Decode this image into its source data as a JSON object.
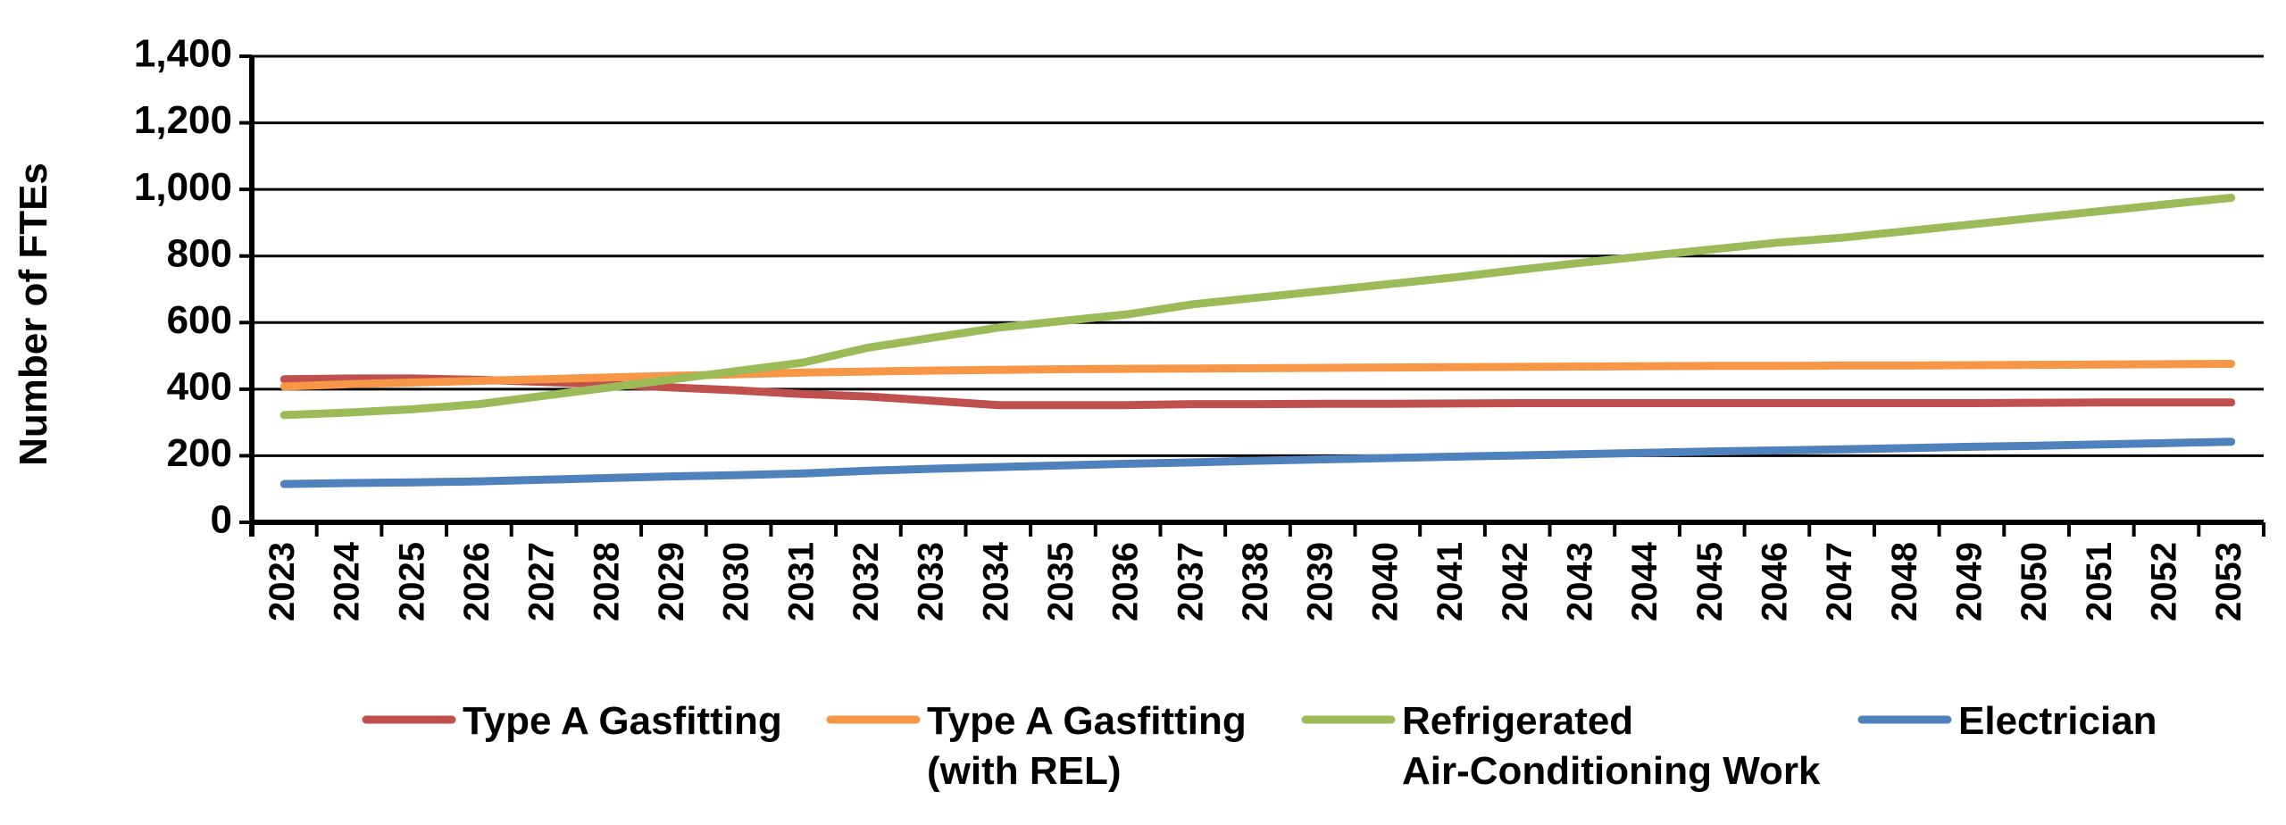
{
  "chart_data": {
    "type": "line",
    "title": "",
    "xlabel": "",
    "ylabel": "Number of FTEs",
    "ylim": [
      0,
      1400
    ],
    "yticks": [
      "0",
      "200",
      "400",
      "600",
      "800",
      "1,000",
      "1,200",
      "1,400"
    ],
    "grid": true,
    "legend_position": "bottom",
    "categories": [
      "2023",
      "2024",
      "2025",
      "2026",
      "2027",
      "2028",
      "2029",
      "2030",
      "2031",
      "2032",
      "2033",
      "2034",
      "2035",
      "2036",
      "2037",
      "2038",
      "2039",
      "2040",
      "2041",
      "2042",
      "2043",
      "2044",
      "2045",
      "2046",
      "2047",
      "2048",
      "2049",
      "2050",
      "2051",
      "2052",
      "2053"
    ],
    "series": [
      {
        "name": "Type A Gasfitting",
        "label_lines": [
          "Type A Gasfitting"
        ],
        "color": "#c0504d",
        "values": [
          430,
          432,
          432,
          428,
          422,
          414,
          405,
          396,
          385,
          378,
          365,
          352,
          352,
          352,
          355,
          355,
          356,
          356,
          357,
          358,
          358,
          358,
          358,
          358,
          358,
          358,
          358,
          359,
          360,
          360,
          360
        ]
      },
      {
        "name": "Type A Gasfitting (with REL)",
        "label_lines": [
          "Type A Gasfitting",
          "(with REL)"
        ],
        "color": "#f79646",
        "values": [
          408,
          415,
          420,
          425,
          430,
          435,
          440,
          445,
          450,
          453,
          456,
          458,
          460,
          461,
          462,
          463,
          464,
          465,
          466,
          467,
          468,
          469,
          470,
          470,
          471,
          471,
          472,
          473,
          474,
          475,
          476
        ]
      },
      {
        "name": "Refrigerated Air-Conditioning Work",
        "label_lines": [
          "Refrigerated",
          "Air-Conditioning Work"
        ],
        "color": "#9bbb59",
        "values": [
          322,
          330,
          340,
          355,
          380,
          405,
          430,
          455,
          480,
          525,
          555,
          585,
          605,
          625,
          655,
          675,
          695,
          715,
          735,
          758,
          780,
          800,
          820,
          840,
          855,
          875,
          895,
          915,
          935,
          955,
          975
        ]
      },
      {
        "name": "Electrician",
        "label_lines": [
          "Electrician"
        ],
        "color": "#4f81bd",
        "values": [
          115,
          118,
          120,
          123,
          128,
          133,
          138,
          142,
          147,
          155,
          161,
          166,
          171,
          176,
          180,
          185,
          189,
          193,
          197,
          201,
          205,
          209,
          213,
          216,
          219,
          223,
          227,
          230,
          234,
          238,
          242
        ]
      }
    ]
  }
}
